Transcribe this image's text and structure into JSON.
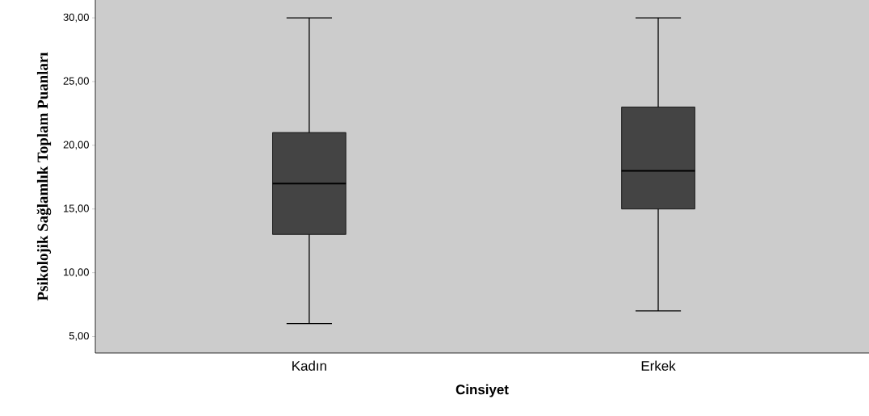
{
  "chart_data": {
    "type": "box",
    "xlabel": "Cinsiyet",
    "ylabel": "Psikolojik Sağlamlık Toplam Puanları",
    "categories": [
      "Kadın",
      "Erkek"
    ],
    "color": "#444444",
    "boxes": [
      {
        "low": 6,
        "q1": 13,
        "median": 17,
        "q3": 21,
        "high": 30
      },
      {
        "low": 7,
        "q1": 15,
        "median": 18,
        "q3": 23,
        "high": 30
      }
    ],
    "ylim": [
      3.7,
      31.4
    ],
    "yticks": [
      {
        "value": 5,
        "label": "5,00"
      },
      {
        "value": 10,
        "label": "10,00"
      },
      {
        "value": 15,
        "label": "15,00"
      },
      {
        "value": 20,
        "label": "20,00"
      },
      {
        "value": 25,
        "label": "25,00"
      },
      {
        "value": 30,
        "label": "30,00"
      }
    ]
  }
}
